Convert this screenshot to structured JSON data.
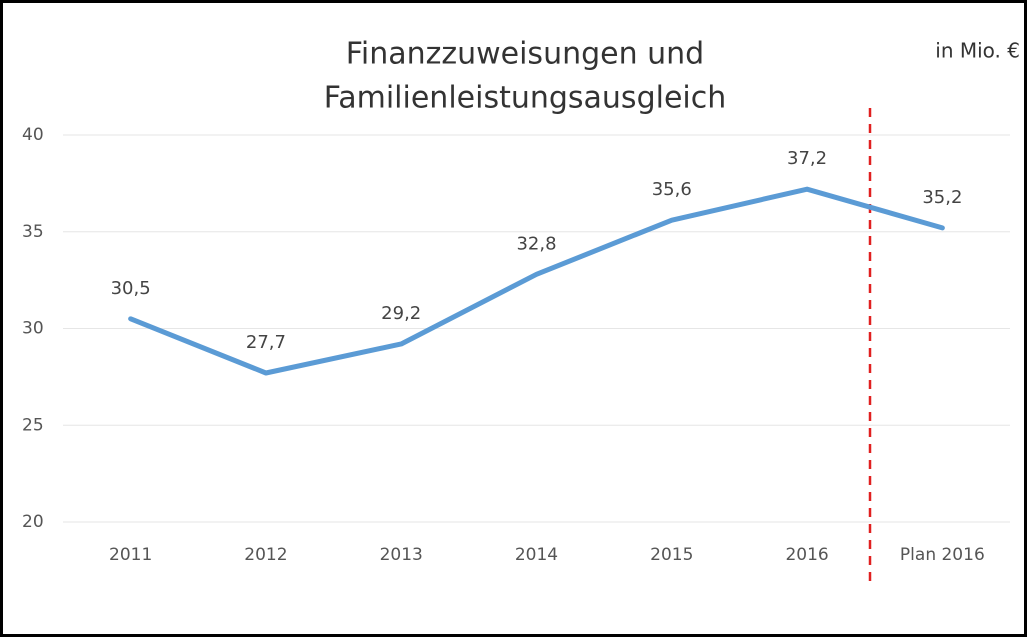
{
  "chart_data": {
    "type": "line",
    "title": [
      "Finanzzuweisungen und",
      "Familienleistungsausgleich"
    ],
    "annotation": "in Mio. €",
    "categories": [
      "2011",
      "2012",
      "2013",
      "2014",
      "2015",
      "2016",
      "Plan 2016"
    ],
    "series": [
      {
        "name": "Finanzzuweisungen und Familienleistungsausgleich",
        "color": "#5b9bd5",
        "values": [
          30.5,
          27.7,
          29.2,
          32.8,
          35.6,
          37.2,
          35.2
        ],
        "value_labels": [
          "30,5",
          "27,7",
          "29,2",
          "32,8",
          "35,6",
          "37,2",
          "35,2"
        ]
      }
    ],
    "ylim": [
      20,
      40
    ],
    "yticks": [
      20,
      25,
      30,
      35,
      40
    ],
    "grid": true
  }
}
